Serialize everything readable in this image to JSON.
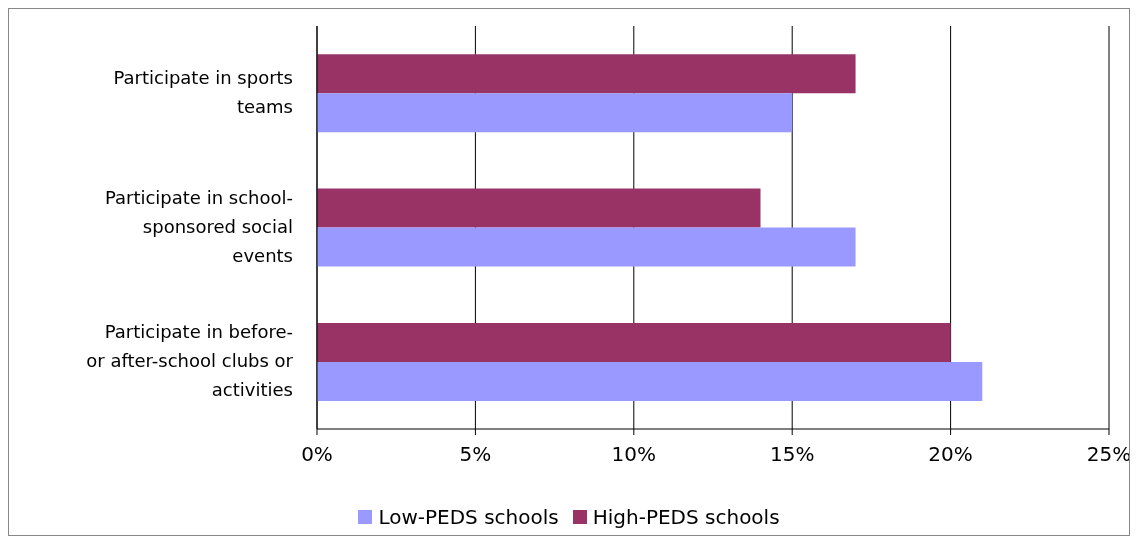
{
  "chart_data": {
    "type": "bar",
    "orientation": "horizontal",
    "categories": [
      "Participate in sports teams",
      "Participate in school-sponsored social events",
      "Participate in before- or after-school clubs or activities"
    ],
    "series": [
      {
        "name": "Low-PEDS schools",
        "color": "#9999ff",
        "values": [
          15,
          17,
          21
        ]
      },
      {
        "name": "High-PEDS schools",
        "color": "#993366",
        "values": [
          17,
          14,
          20
        ]
      }
    ],
    "xlim": [
      0,
      25
    ],
    "xticks": [
      {
        "value": 0,
        "label": "0%"
      },
      {
        "value": 5,
        "label": "5%"
      },
      {
        "value": 10,
        "label": "10%"
      },
      {
        "value": 15,
        "label": "15%"
      },
      {
        "value": 20,
        "label": "20%"
      },
      {
        "value": 25,
        "label": "25%"
      }
    ],
    "grid": "x",
    "legend": "bottom"
  }
}
